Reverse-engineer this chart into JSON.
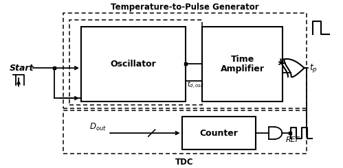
{
  "title_top": "Temperature-to-Pulse Generator",
  "title_bottom": "TDC",
  "start_label": "Start",
  "oscillator_label": "Oscillator",
  "time_amp_label1": "Time",
  "time_amp_label2": "Amplifier",
  "counter_label": "Counter",
  "td_osc_label": "$t_{d,osc}$",
  "tp_label": "$t_p$",
  "dout_label": "$D_{out}$",
  "ref_label": "REF",
  "bg_color": "#ffffff",
  "text_color": "#000000",
  "figw": 4.99,
  "figh": 2.45,
  "dpi": 100
}
